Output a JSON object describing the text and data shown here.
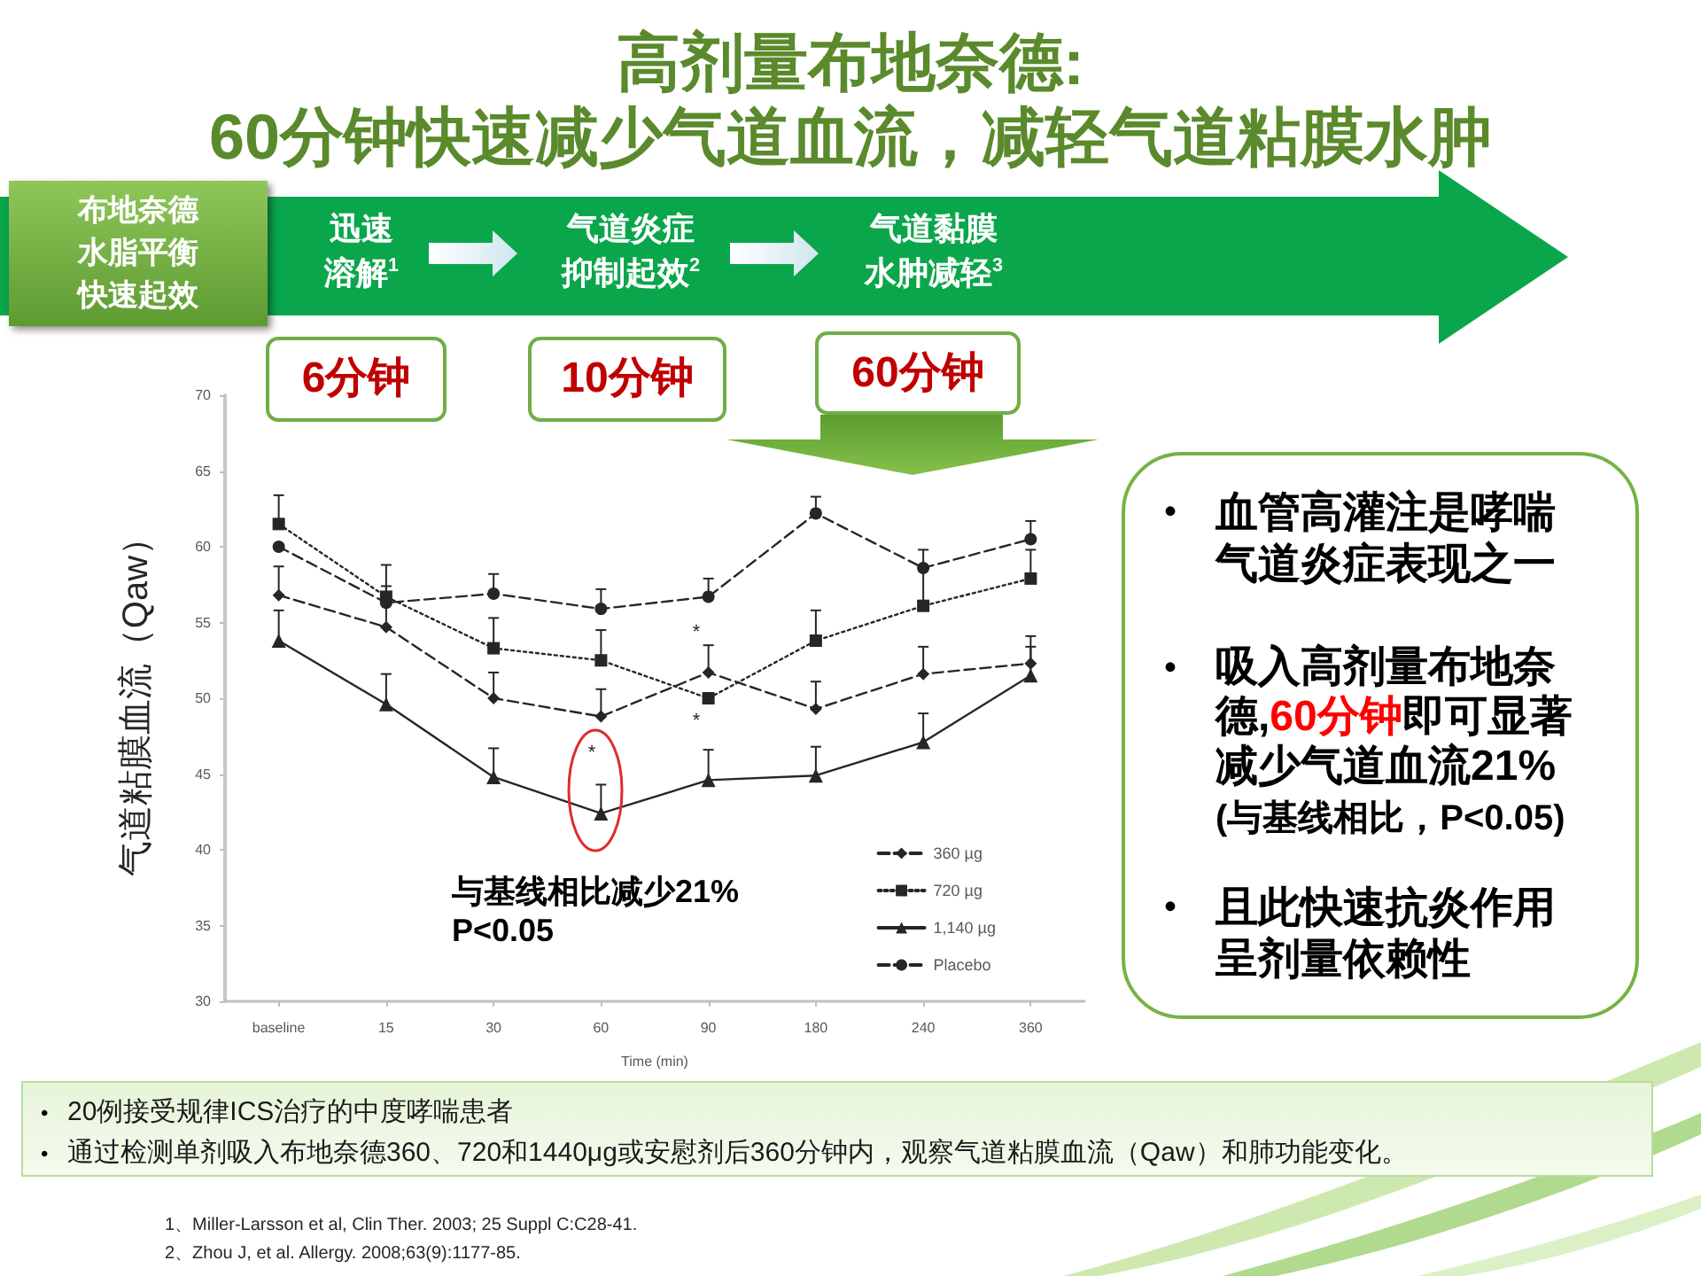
{
  "chart_data": {
    "type": "line",
    "title": "高剂量布地奈德:",
    "subtitle": "60分钟快速减少气道血流，减轻气道粘膜水肿",
    "xlabel": "Time (min)",
    "ylabel": "气道粘膜血流（Qaw）",
    "categories": [
      "baseline",
      "15",
      "30",
      "60",
      "90",
      "180",
      "240",
      "360"
    ],
    "ylim": [
      30,
      70
    ],
    "yticks": [
      30,
      35,
      40,
      45,
      50,
      55,
      60,
      65,
      70
    ],
    "legend": "bottom right",
    "series": [
      {
        "name": "360 µg",
        "color": "#262626",
        "marker": "diamond",
        "line_style": "dashed",
        "values": [
          56.8,
          54.7,
          50.0,
          48.8,
          51.7,
          49.3,
          51.6,
          52.3
        ],
        "errors": [
          [
            56.8,
            58.7
          ],
          [
            54.7,
            57.4
          ],
          [
            50.0,
            51.7
          ],
          [
            48.8,
            50.6
          ],
          [
            51.7,
            53.5
          ],
          [
            49.3,
            51.1
          ],
          [
            51.6,
            53.4
          ],
          [
            52.3,
            54.1
          ]
        ]
      },
      {
        "name": "720 µg",
        "color": "#262626",
        "marker": "square",
        "line_style": "dotted",
        "values": [
          61.5,
          56.7,
          53.3,
          52.5,
          50.0,
          53.8,
          56.1,
          57.9
        ],
        "errors": [
          [
            61.5,
            63.4
          ],
          [
            56.7,
            58.8
          ],
          [
            53.3,
            55.3
          ],
          [
            52.5,
            54.5
          ],
          null,
          [
            53.8,
            55.8
          ],
          [
            56.1,
            58.6
          ],
          [
            57.9,
            59.8
          ]
        ]
      },
      {
        "name": "1,140 µg",
        "color": "#262626",
        "marker": "triangle",
        "line_style": "solid",
        "values": [
          53.8,
          49.6,
          44.8,
          42.4,
          44.6,
          44.9,
          47.1,
          51.5
        ],
        "errors": [
          [
            53.8,
            55.8
          ],
          [
            49.6,
            51.6
          ],
          [
            44.8,
            46.7
          ],
          [
            42.4,
            44.3
          ],
          [
            44.6,
            46.6
          ],
          [
            44.9,
            46.8
          ],
          [
            47.1,
            49.0
          ],
          [
            51.5,
            53.4
          ]
        ]
      },
      {
        "name": "Placebo",
        "color": "#262626",
        "marker": "circle",
        "line_style": "dashed",
        "values": [
          60.0,
          56.3,
          56.9,
          55.9,
          56.7,
          62.2,
          58.6,
          60.5
        ],
        "errors": [
          null,
          null,
          [
            56.9,
            58.2
          ],
          [
            55.9,
            57.2
          ],
          [
            56.7,
            57.9
          ],
          [
            62.2,
            63.3
          ],
          [
            58.6,
            59.8
          ],
          [
            60.5,
            61.7
          ]
        ]
      }
    ],
    "annotations": [
      "布地奈德水脂平衡快速起效",
      "迅速溶解$^{1}$",
      "气道炎症抑制起效$^{2}$",
      "气道黏膜水肿减轻$^{3}$",
      "6分钟",
      "10分钟",
      "60分钟",
      "与基线相比减少21%\nP<0.05",
      "*",
      "*",
      "*",
      "•",
      "血管高灌注是哮喘气道炎症表现之一",
      "•",
      "吸入高剂量布地奈德,",
      "60分钟",
      "即可显著减少气道血流21%",
      "(与基线相比，P<0.05)",
      "•",
      "且此快速抗炎作用呈剂量依赖性",
      "•",
      "20例接受规律ICS治疗的中度哮喘患者",
      "•",
      "通过检测单剂吸入布地奈德360、720和1440μg或安慰剂后360分钟内，观察气道粘膜血流（Qaw）和肺功能变化。",
      "1、Miller-Larsson et al, Clin Ther. 2003; 25 Suppl C:C28-41.",
      "2、Zhou J, et al. Allergy. 2008;63(9):1177-85."
    ]
  }
}
